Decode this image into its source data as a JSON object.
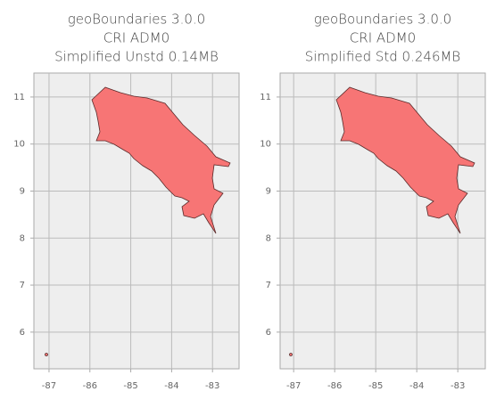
{
  "chart_data": [
    {
      "type": "map",
      "title": [
        "geoBoundaries 3.0.0",
        "CRI ADM0",
        "Simplified Unstd 0.14MB"
      ],
      "xlim": [
        -87.37,
        -82.35
      ],
      "ylim": [
        5.22,
        11.51
      ],
      "xticks": [
        -87,
        -86,
        -85,
        -84,
        -83
      ],
      "yticks": [
        6,
        7,
        8,
        9,
        10,
        11
      ],
      "grid": true,
      "color": "#f77575",
      "edgecolor": "#5a2a2a"
    },
    {
      "type": "map",
      "title": [
        "geoBoundaries 3.0.0",
        "CRI ADM0",
        "Simplified Std 0.246MB"
      ],
      "xlim": [
        -87.33,
        -82.33
      ],
      "ylim": [
        5.22,
        11.51
      ],
      "xticks": [
        -87,
        -86,
        -85,
        -84,
        -83
      ],
      "yticks": [
        6,
        7,
        8,
        9,
        10,
        11
      ],
      "grid": true,
      "color": "#f77575",
      "edgecolor": "#5a2a2a"
    }
  ]
}
